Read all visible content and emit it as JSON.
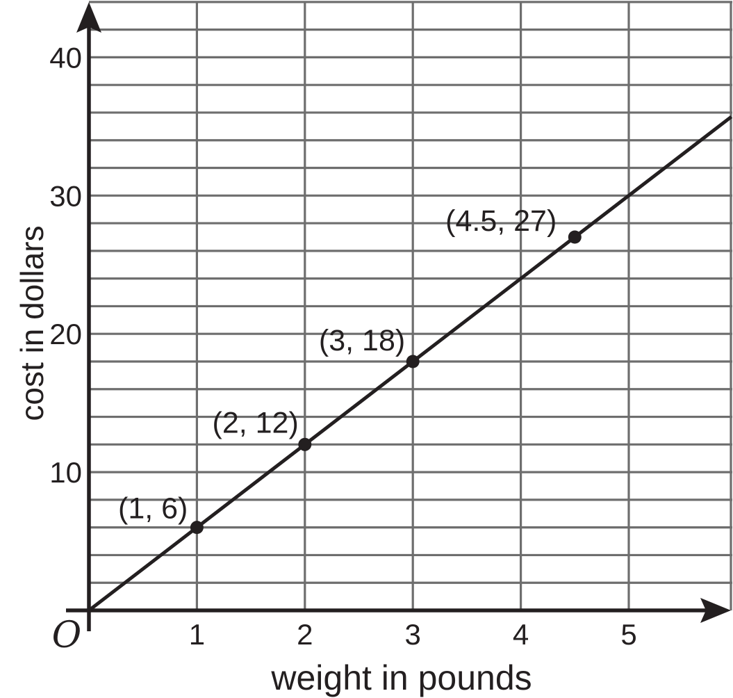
{
  "chart_data": {
    "type": "line",
    "title": "",
    "xlabel": "weight in pounds",
    "ylabel": "cost in dollars",
    "origin_label": "O",
    "x_ticks": [
      1,
      2,
      3,
      4,
      5
    ],
    "y_ticks": [
      10,
      20,
      30,
      40
    ],
    "xlim": [
      0,
      5.95
    ],
    "ylim": [
      0,
      44
    ],
    "x_grid_step": 1,
    "y_grid_step": 2,
    "grid": true,
    "legend": "none",
    "series": [
      {
        "name": "cost vs weight line",
        "slope": 6,
        "intercept": 0,
        "x_range": [
          0,
          5.95
        ]
      }
    ],
    "points": [
      {
        "x": 1,
        "y": 6,
        "label": "(1, 6)"
      },
      {
        "x": 2,
        "y": 12,
        "label": "(2, 12)"
      },
      {
        "x": 3,
        "y": 18,
        "label": "(3, 18)"
      },
      {
        "x": 4.5,
        "y": 27,
        "label": "(4.5, 27)"
      }
    ],
    "colors": {
      "ink": "#231f20",
      "grid": "#6e6e6e",
      "background": "#ffffff"
    }
  }
}
